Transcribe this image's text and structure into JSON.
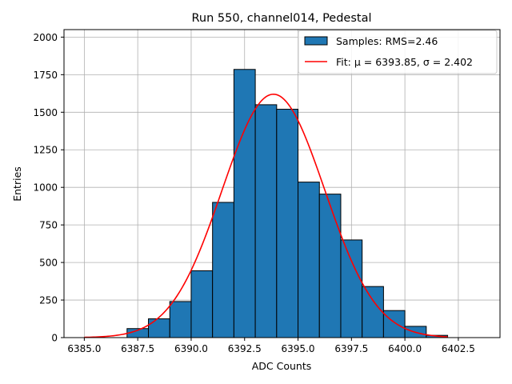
{
  "chart_data": {
    "type": "bar",
    "title": "Run 550, channel014, Pedestal",
    "xlabel": "ADC Counts",
    "ylabel": "Entries",
    "xlim": [
      6384.05,
      6404.45
    ],
    "ylim": [
      0,
      2050
    ],
    "xticks": [
      6385.0,
      6387.5,
      6390.0,
      6392.5,
      6395.0,
      6397.5,
      6400.0,
      6402.5
    ],
    "xtick_labels": [
      "6385.0",
      "6387.5",
      "6390.0",
      "6392.5",
      "6395.0",
      "6397.5",
      "6400.0",
      "6402.5"
    ],
    "yticks": [
      0,
      250,
      500,
      750,
      1000,
      1250,
      1500,
      1750,
      2000
    ],
    "ytick_labels": [
      "0",
      "250",
      "500",
      "750",
      "1000",
      "1250",
      "1500",
      "1750",
      "2000"
    ],
    "grid": true,
    "legend_position": "top-right",
    "bin_width": 1.0,
    "bins": [
      {
        "left": 6387.0,
        "value": 60
      },
      {
        "left": 6388.0,
        "value": 125
      },
      {
        "left": 6389.0,
        "value": 240
      },
      {
        "left": 6390.0,
        "value": 445
      },
      {
        "left": 6391.0,
        "value": 900
      },
      {
        "left": 6392.0,
        "value": 1785
      },
      {
        "left": 6393.0,
        "value": 1550
      },
      {
        "left": 6394.0,
        "value": 1520
      },
      {
        "left": 6395.0,
        "value": 1035
      },
      {
        "left": 6396.0,
        "value": 955
      },
      {
        "left": 6397.0,
        "value": 650
      },
      {
        "left": 6398.0,
        "value": 340
      },
      {
        "left": 6399.0,
        "value": 180
      },
      {
        "left": 6400.0,
        "value": 75
      },
      {
        "left": 6401.0,
        "value": 15
      }
    ],
    "fit": {
      "mu": 6393.85,
      "sigma": 2.402,
      "amplitude": 1620,
      "x_range": [
        6385.0,
        6402.0
      ]
    },
    "series": [
      {
        "name": "Samples: RMS=2.46",
        "kind": "histogram",
        "color": "#1f77b4"
      },
      {
        "name": "Fit: μ = 6393.85, σ = 2.402",
        "kind": "line",
        "color": "#ff0000"
      }
    ]
  }
}
